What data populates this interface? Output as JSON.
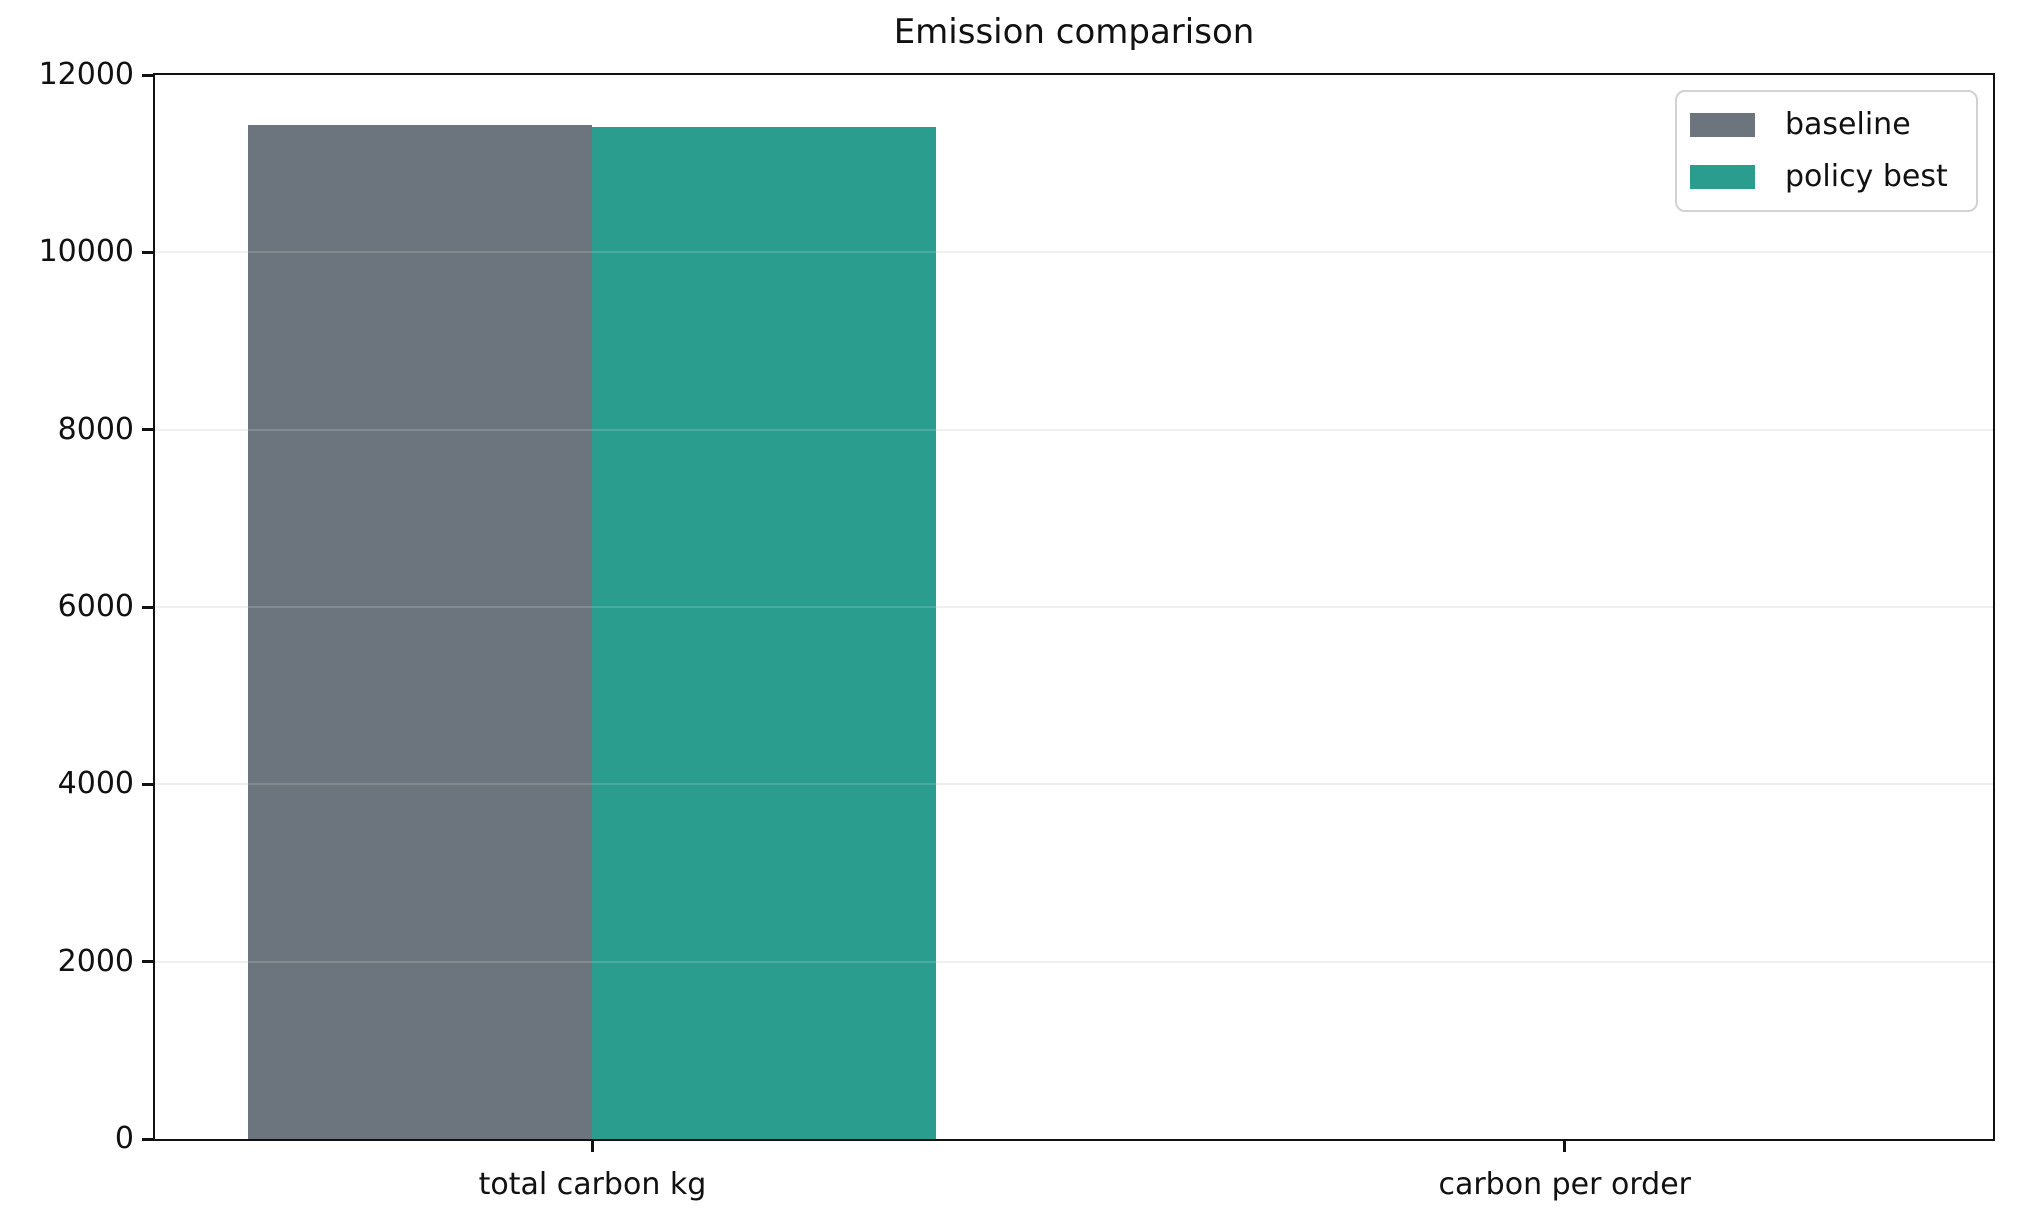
{
  "title": "Emission comparison",
  "chart_data": {
    "type": "bar",
    "title": "Emission comparison",
    "categories": [
      "total carbon kg",
      "carbon per order"
    ],
    "series": [
      {
        "name": "baseline",
        "color": "#6c757d",
        "values": [
          11440,
          0
        ]
      },
      {
        "name": "policy best",
        "color": "#2a9d8f",
        "values": [
          11410,
          0
        ]
      }
    ],
    "xlabel": "",
    "ylabel": "",
    "ylim": [
      0,
      12000
    ],
    "yticks": [
      0,
      2000,
      4000,
      6000,
      8000,
      10000,
      12000
    ],
    "y_tick_labels": [
      "0",
      "2000",
      "4000",
      "6000",
      "8000",
      "10000",
      "12000"
    ],
    "grid": "horizontal, light gray, every 2000",
    "legend_position": "upper right",
    "colors": {
      "spine": "#111111",
      "gridline": "#ececec",
      "background": "#ffffff",
      "text": "#111111"
    }
  }
}
